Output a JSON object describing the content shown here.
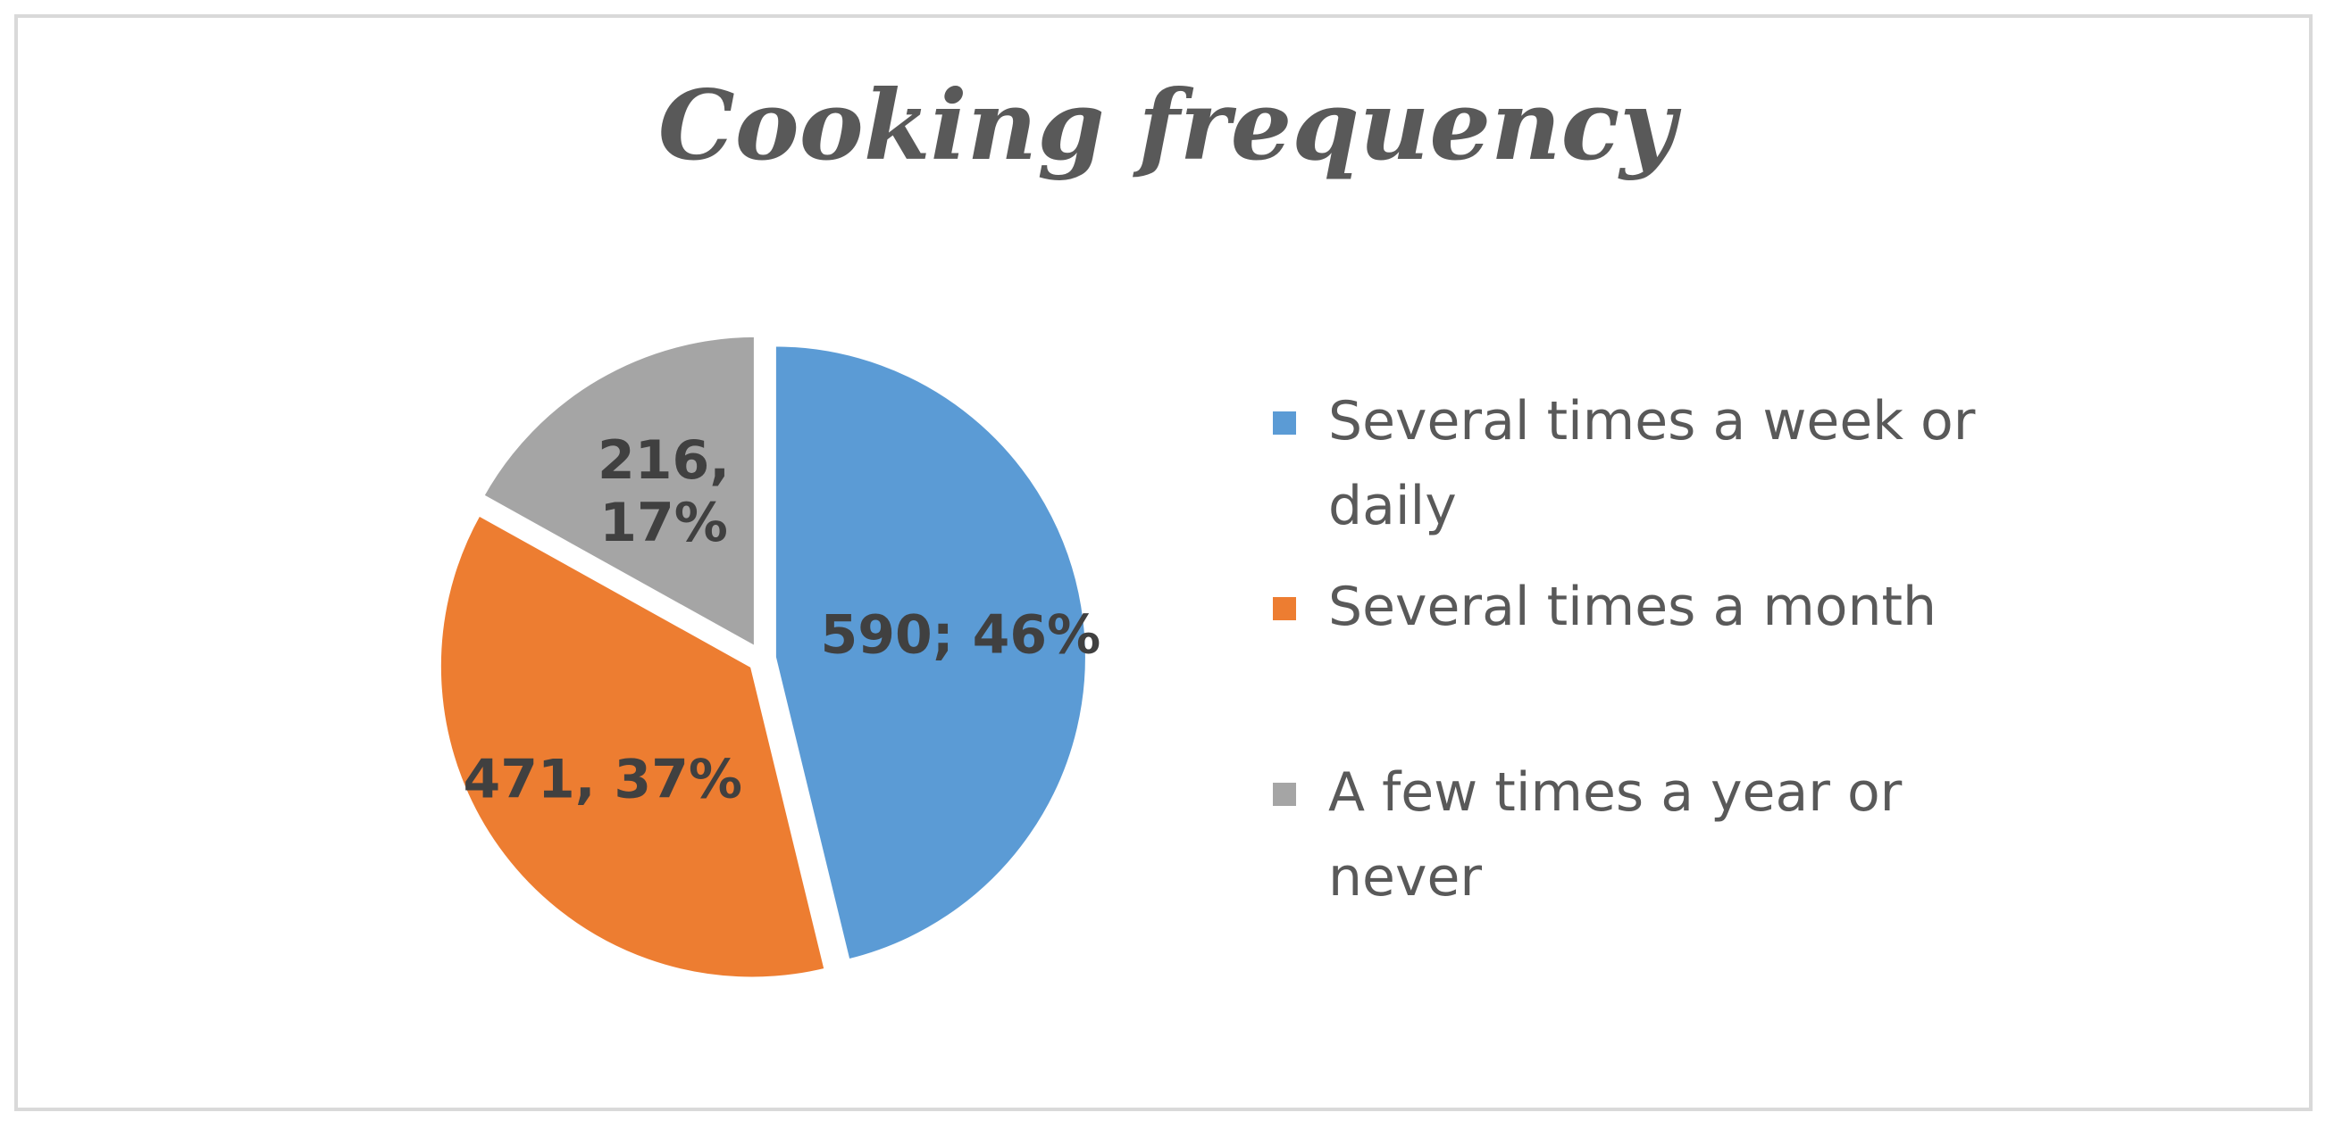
{
  "chart_data": {
    "type": "pie",
    "title": "Cooking frequency",
    "categories": [
      "Several times a week or daily",
      "Several times a month",
      "A few times a year or never"
    ],
    "values": [
      590,
      471,
      216
    ],
    "percentages": [
      46,
      37,
      17
    ],
    "data_labels": [
      "590; 46%",
      "471, 37%",
      "216, 17%"
    ],
    "colors": [
      "#5b9bd5",
      "#ed7d31",
      "#a5a5a5"
    ],
    "legend_placement": "right",
    "start_angle": "12 o'clock",
    "direction": "clockwise"
  }
}
